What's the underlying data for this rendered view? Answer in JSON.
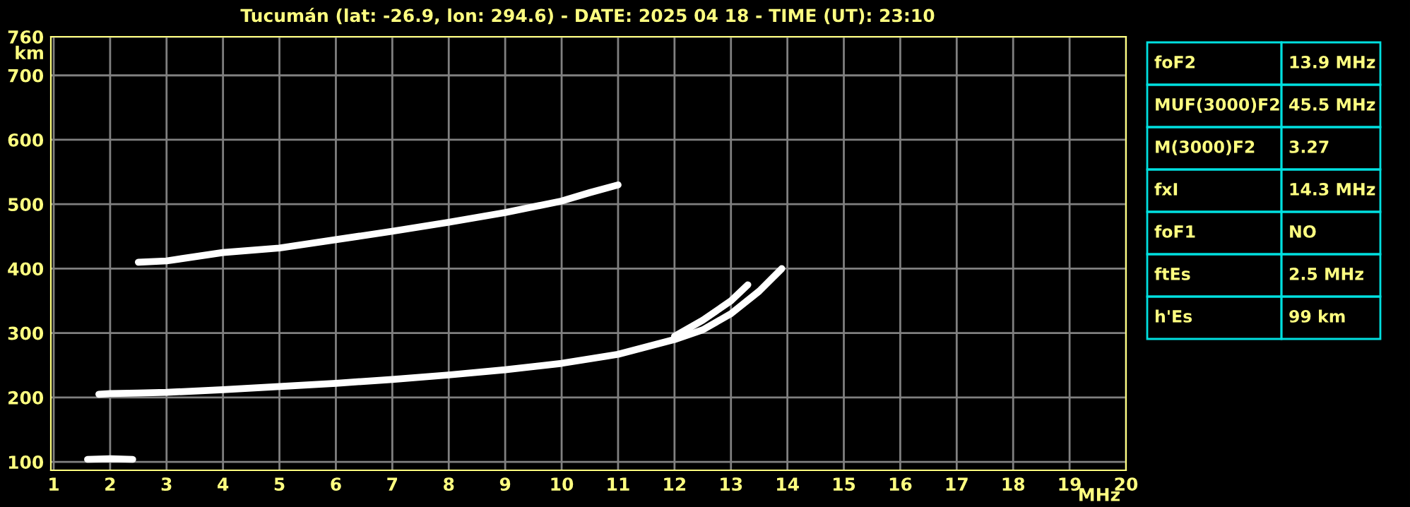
{
  "chart_data": {
    "type": "line",
    "title": "Tucumán (lat: -26.9, lon: 294.6) - DATE: 2025 04 18 - TIME (UT): 23:10",
    "xlabel": "MHz",
    "ylabel": "km",
    "series": [
      {
        "color": "#ffffff",
        "x": [
          1.8,
          2.0,
          2.5,
          3,
          4,
          5,
          6,
          7,
          8,
          9,
          10,
          11,
          12,
          12.5,
          13,
          13.5,
          13.9
        ],
        "values": [
          205,
          206,
          207,
          208,
          212,
          217,
          222,
          228,
          235,
          243,
          253,
          267,
          290,
          305,
          330,
          365,
          400
        ]
      },
      {
        "color": "#ffffff",
        "x": [
          12,
          12.5,
          13,
          13.3
        ],
        "values": [
          295,
          320,
          350,
          375
        ]
      },
      {
        "color": "#ffffff",
        "x": [
          2.5,
          3,
          4,
          5,
          6,
          7,
          8,
          9,
          10,
          10.5,
          11
        ],
        "values": [
          410,
          412,
          425,
          432,
          445,
          458,
          472,
          487,
          505,
          518,
          530
        ]
      },
      {
        "color": "#ffffff",
        "x": [
          1.6,
          2.0,
          2.4
        ],
        "values": [
          104,
          105,
          104
        ]
      }
    ],
    "xlim": [
      0.95,
      20
    ],
    "ylim": [
      87,
      760
    ],
    "xticks": [
      1,
      2,
      3,
      4,
      5,
      6,
      7,
      8,
      9,
      10,
      11,
      12,
      13,
      14,
      15,
      16,
      17,
      18,
      19,
      20
    ],
    "yticks": [
      100,
      200,
      300,
      400,
      500,
      600,
      700,
      760
    ],
    "grid": true,
    "marker": "none",
    "line_style": "solid",
    "annotations": [
      "foF2",
      "13.9 MHz",
      "MUF(3000)F2",
      "45.5 MHz",
      "M(3000)F2",
      "3.27",
      "fxI",
      "14.3 MHz",
      "foF1",
      "NO",
      "ftEs",
      "2.5 MHz",
      "h'Es",
      "99 km"
    ]
  }
}
